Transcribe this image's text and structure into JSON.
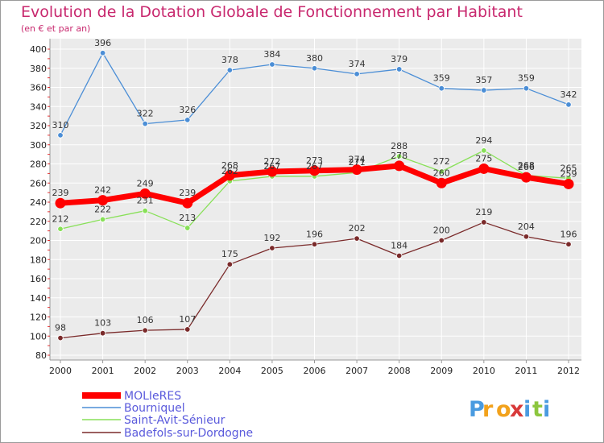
{
  "chart_data": {
    "type": "line",
    "title": "Evolution de la Dotation Globale de Fonctionnement par Habitant",
    "subtitle": "(en € et par an)",
    "xlabel": "",
    "ylabel": "",
    "ylim": [
      80,
      400
    ],
    "yticks": [
      80,
      100,
      120,
      140,
      160,
      180,
      200,
      220,
      240,
      260,
      280,
      300,
      320,
      340,
      360,
      380,
      400
    ],
    "categories": [
      "2000",
      "2001",
      "2002",
      "2003",
      "2004",
      "2005",
      "2006",
      "2007",
      "2008",
      "2009",
      "2010",
      "2011",
      "2012"
    ],
    "grid": true,
    "legend_position": "bottom-left",
    "series": [
      {
        "name": "MOLIeRES",
        "color": "#ff0000",
        "values": [
          239,
          242,
          249,
          239,
          268,
          272,
          273,
          274,
          278,
          260,
          275,
          266,
          259
        ]
      },
      {
        "name": "Bourniquel",
        "color": "#4b8ed6",
        "values": [
          310,
          396,
          322,
          326,
          378,
          384,
          380,
          374,
          379,
          359,
          357,
          359,
          342
        ]
      },
      {
        "name": "Saint-Avit-Sénieur",
        "color": "#88e058",
        "values": [
          212,
          222,
          231,
          213,
          262,
          267,
          267,
          271,
          288,
          272,
          294,
          268,
          265
        ]
      },
      {
        "name": "Badefols-sur-Dordogne",
        "color": "#7a2a2a",
        "values": [
          98,
          103,
          106,
          107,
          175,
          192,
          196,
          202,
          184,
          200,
          219,
          204,
          196
        ]
      }
    ]
  },
  "brand": {
    "letters": [
      "P",
      "r",
      "o",
      "x",
      "i",
      "t",
      "i"
    ],
    "colors": [
      "#4a9be0",
      "#f2a21c",
      "#f2a21c",
      "#d83a3a",
      "#4a9be0",
      "#8cc63e",
      "#4a9be0"
    ]
  }
}
